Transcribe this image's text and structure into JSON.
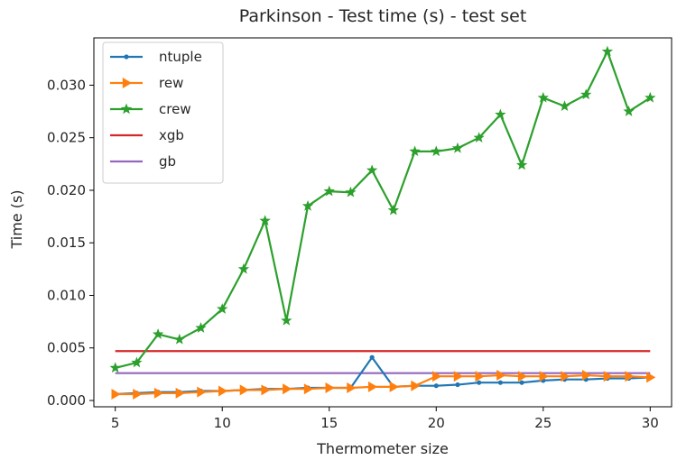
{
  "chart_data": {
    "type": "line",
    "title": "Parkinson - Test time (s) - test set",
    "xlabel": "Thermometer size",
    "ylabel": "Time (s)",
    "xlim": [
      4.0,
      31.0
    ],
    "ylim": [
      -0.0006,
      0.0345
    ],
    "xticks": [
      5,
      10,
      15,
      20,
      25,
      30
    ],
    "xtick_labels": [
      "5",
      "10",
      "15",
      "20",
      "25",
      "30"
    ],
    "yticks": [
      0.0,
      0.005,
      0.01,
      0.015,
      0.02,
      0.025,
      0.03
    ],
    "ytick_labels": [
      "0.000",
      "0.005",
      "0.010",
      "0.015",
      "0.020",
      "0.025",
      "0.030"
    ],
    "grid": false,
    "legend_position": "top-left",
    "x": [
      5,
      6,
      7,
      8,
      9,
      10,
      11,
      12,
      13,
      14,
      15,
      16,
      17,
      18,
      19,
      20,
      21,
      22,
      23,
      24,
      25,
      26,
      27,
      28,
      29,
      30
    ],
    "series": [
      {
        "name": "ntuple",
        "color": "#1f77b4",
        "marker": "dot",
        "values": [
          0.0006,
          0.0007,
          0.0008,
          0.0008,
          0.0009,
          0.0009,
          0.001,
          0.0011,
          0.0011,
          0.0012,
          0.0012,
          0.0012,
          0.0041,
          0.0013,
          0.0014,
          0.0014,
          0.0015,
          0.0017,
          0.0017,
          0.0017,
          0.0019,
          0.002,
          0.002,
          0.0021,
          0.0021,
          0.0022
        ]
      },
      {
        "name": "rew",
        "color": "#ff7f0e",
        "marker": "triangle-right",
        "values": [
          0.0006,
          0.0006,
          0.0007,
          0.0007,
          0.0008,
          0.0009,
          0.001,
          0.001,
          0.0011,
          0.0011,
          0.0012,
          0.0012,
          0.0013,
          0.0013,
          0.0014,
          0.0023,
          0.0023,
          0.0023,
          0.0024,
          0.0023,
          0.0023,
          0.0023,
          0.0024,
          0.0023,
          0.0023,
          0.0022
        ]
      },
      {
        "name": "crew",
        "color": "#2ca02c",
        "marker": "star",
        "values": [
          0.0031,
          0.0036,
          0.0063,
          0.0058,
          0.0069,
          0.0087,
          0.0125,
          0.0171,
          0.0076,
          0.0185,
          0.0199,
          0.0198,
          0.0219,
          0.0181,
          0.0237,
          0.0237,
          0.024,
          0.025,
          0.0272,
          0.0224,
          0.0288,
          0.028,
          0.0291,
          0.0332,
          0.0275,
          0.0288
        ]
      },
      {
        "name": "xgb",
        "color": "#d62728",
        "marker": "none",
        "values": [
          0.0047,
          0.0047,
          0.0047,
          0.0047,
          0.0047,
          0.0047,
          0.0047,
          0.0047,
          0.0047,
          0.0047,
          0.0047,
          0.0047,
          0.0047,
          0.0047,
          0.0047,
          0.0047,
          0.0047,
          0.0047,
          0.0047,
          0.0047,
          0.0047,
          0.0047,
          0.0047,
          0.0047,
          0.0047,
          0.0047
        ]
      },
      {
        "name": "gb",
        "color": "#9467bd",
        "marker": "none",
        "values": [
          0.0026,
          0.0026,
          0.0026,
          0.0026,
          0.0026,
          0.0026,
          0.0026,
          0.0026,
          0.0026,
          0.0026,
          0.0026,
          0.0026,
          0.0026,
          0.0026,
          0.0026,
          0.0026,
          0.0026,
          0.0026,
          0.0026,
          0.0026,
          0.0026,
          0.0026,
          0.0026,
          0.0026,
          0.0026,
          0.0026
        ]
      }
    ]
  }
}
